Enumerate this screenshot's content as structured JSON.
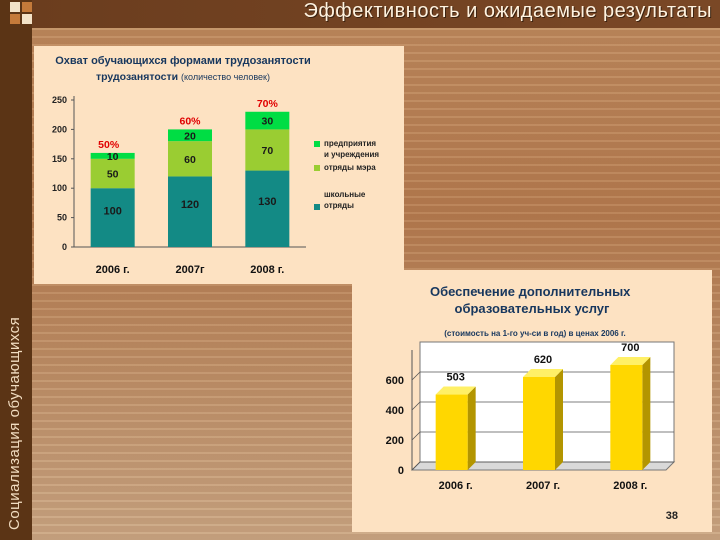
{
  "slide": {
    "title": "Эффективность и ожидаемые результаты",
    "sidebar_text": "Социализация обучающихся",
    "page_number": "38"
  },
  "chart_data": [
    {
      "type": "bar",
      "stacked": true,
      "title": "Охват обучающихся формами трудозанятости",
      "subtitle": "(количество человек)",
      "categories": [
        "2006 г.",
        "2007г",
        "2008 г."
      ],
      "series": [
        {
          "name": "школьные отряды",
          "values": [
            100,
            120,
            130
          ],
          "color": "#138a85"
        },
        {
          "name": "отряды мэра",
          "values": [
            50,
            60,
            70
          ],
          "color": "#9acd32"
        },
        {
          "name": "предприятия и учреждения",
          "values": [
            10,
            20,
            30
          ],
          "color": "#00dd44"
        }
      ],
      "top_labels": [
        "50%",
        "60%",
        "70%"
      ],
      "yticks": [
        0,
        50,
        100,
        150,
        200,
        250
      ],
      "ylim": [
        0,
        250
      ],
      "grid": false,
      "legend": "right"
    },
    {
      "type": "bar",
      "three_d": true,
      "title": "Обеспечение дополнительных образовательных услуг",
      "subtitle": "(стоимость на 1-го уч-си в год) в ценах 2006 г.",
      "categories": [
        "2006 г.",
        "2007 г.",
        "2008 г."
      ],
      "values": [
        503,
        620,
        700
      ],
      "color": "#ffd700",
      "yticks": [
        0,
        200,
        400,
        600
      ],
      "ylim": [
        0,
        800
      ],
      "grid": true
    }
  ]
}
